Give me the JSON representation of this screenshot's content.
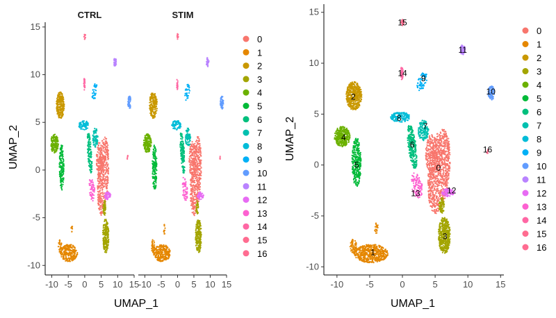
{
  "chart_data": [
    {
      "type": "scatter",
      "panels": [
        "CTRL",
        "STIM"
      ],
      "xlabel": "UMAP_1",
      "ylabel": "UMAP_2",
      "xlim": [
        -12,
        15
      ],
      "ylim": [
        -11,
        15.5
      ],
      "xticks": [
        "-10",
        "-5",
        "0",
        "5",
        "10",
        "15"
      ],
      "yticks": [
        "-10",
        "-5",
        "0",
        "5",
        "10",
        "15"
      ],
      "legend_position": "right",
      "legend": [
        "0",
        "1",
        "2",
        "3",
        "4",
        "5",
        "6",
        "7",
        "8",
        "9",
        "10",
        "11",
        "12",
        "13",
        "14",
        "15",
        "16"
      ]
    },
    {
      "type": "scatter",
      "xlabel": "UMAP_1",
      "ylabel": "UMAP_2",
      "xlim": [
        -12,
        15.5
      ],
      "ylim": [
        -10.8,
        15.8
      ],
      "xticks": [
        "-10",
        "-5",
        "0",
        "5",
        "10",
        "15"
      ],
      "yticks": [
        "-10",
        "-5",
        "0",
        "5",
        "10",
        "15"
      ],
      "legend_position": "right",
      "legend": [
        "0",
        "1",
        "2",
        "3",
        "4",
        "5",
        "6",
        "7",
        "8",
        "9",
        "10",
        "11",
        "12",
        "13",
        "14",
        "15",
        "16"
      ]
    }
  ],
  "clusters": [
    {
      "id": "0",
      "color": "#F8766D",
      "x": 5.5,
      "y": -0.3
    },
    {
      "id": "1",
      "color": "#E58700",
      "x": -4.5,
      "y": -8.6
    },
    {
      "id": "2",
      "color": "#C99800",
      "x": -7.5,
      "y": 6.7
    },
    {
      "id": "3",
      "color": "#A3A500",
      "x": 6.5,
      "y": -7.0
    },
    {
      "id": "4",
      "color": "#6BB100",
      "x": -9.0,
      "y": 2.7
    },
    {
      "id": "5",
      "color": "#00BA38",
      "x": -7.0,
      "y": 0.0
    },
    {
      "id": "6",
      "color": "#00BF7D",
      "x": 1.5,
      "y": 2.0
    },
    {
      "id": "7",
      "color": "#00C0AF",
      "x": 3.5,
      "y": 3.8
    },
    {
      "id": "8",
      "color": "#00BCD8",
      "x": -0.5,
      "y": 4.6
    },
    {
      "id": "9",
      "color": "#00B0F6",
      "x": 3.2,
      "y": 8.5
    },
    {
      "id": "10",
      "color": "#619CFF",
      "x": 13.5,
      "y": 7.2
    },
    {
      "id": "11",
      "color": "#B983FF",
      "x": 9.2,
      "y": 11.3
    },
    {
      "id": "12",
      "color": "#E76BF3",
      "x": 7.5,
      "y": -2.5
    },
    {
      "id": "13",
      "color": "#FD61D1",
      "x": 2.0,
      "y": -2.8
    },
    {
      "id": "14",
      "color": "#FF67A4",
      "x": 0.0,
      "y": 9.0
    },
    {
      "id": "15",
      "color": "#FF6C90",
      "x": 0.0,
      "y": 14.0
    },
    {
      "id": "16",
      "color": "#FF6C91",
      "x": 13.0,
      "y": 1.5
    }
  ]
}
